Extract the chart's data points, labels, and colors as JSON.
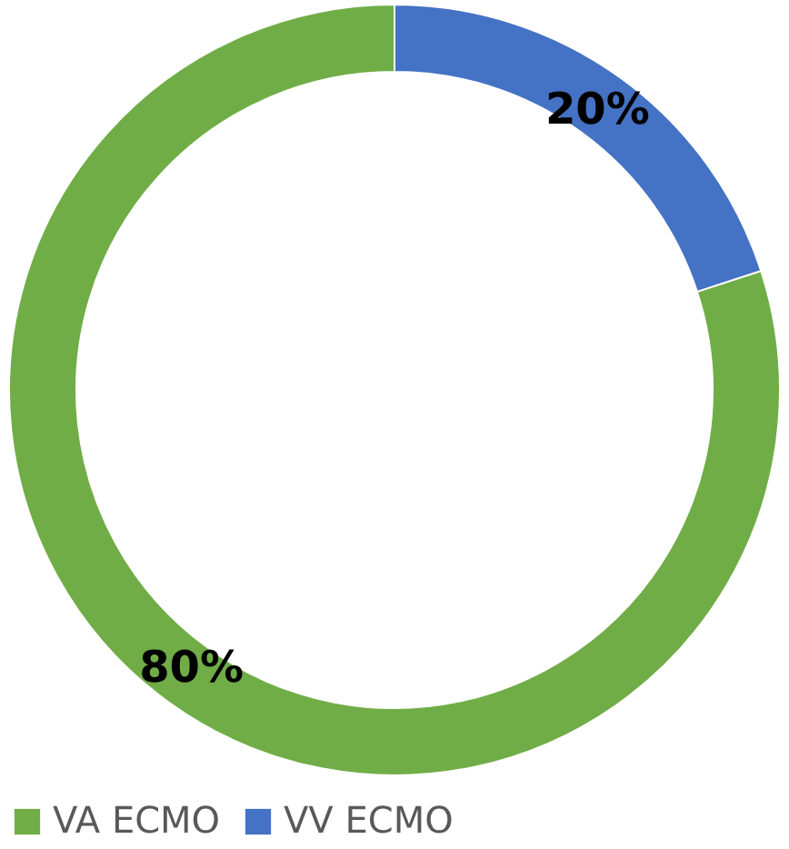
{
  "chart_data": {
    "type": "donut",
    "categories": [
      "VA ECMO",
      "VV ECMO"
    ],
    "values": [
      80,
      20
    ],
    "colors": [
      "#70ad47",
      "#4472c4"
    ],
    "value_labels": [
      "80%",
      "20%"
    ],
    "legend": "bottom"
  }
}
